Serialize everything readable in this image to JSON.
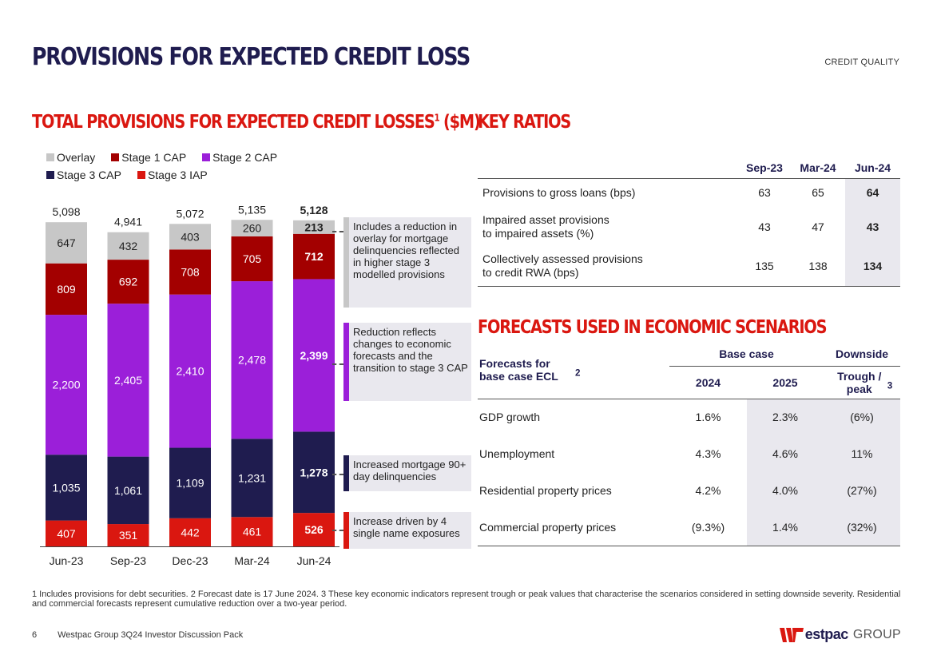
{
  "page": {
    "title": "PROVISIONS FOR EXPECTED CREDIT LOSS",
    "section": "CREDIT QUALITY",
    "page_number": "6",
    "footer_text": "Westpac Group 3Q24 Investor Discussion Pack",
    "logo_text": "estpac",
    "logo_group": "GROUP"
  },
  "chart_title": {
    "text": "TOTAL PROVISIONS FOR EXPECTED CREDIT LOSSES",
    "sup": "1",
    "suffix": " ($M)"
  },
  "legend": [
    {
      "label": "Overlay",
      "color": "#c7c7c7"
    },
    {
      "label": "Stage 1 CAP",
      "color": "#a30000"
    },
    {
      "label": "Stage 2 CAP",
      "color": "#9b1fd9"
    },
    {
      "label": "Stage 3 CAP",
      "color": "#1f1c4f"
    },
    {
      "label": "Stage 3 IAP",
      "color": "#da1710"
    }
  ],
  "chart_data": {
    "type": "bar",
    "stacked": true,
    "title": "Total provisions for expected credit losses ($M)",
    "categories": [
      "Jun-23",
      "Sep-23",
      "Dec-23",
      "Mar-24",
      "Jun-24"
    ],
    "series": [
      {
        "name": "Stage 3 IAP",
        "color": "#da1710",
        "values": [
          407,
          351,
          442,
          461,
          526
        ]
      },
      {
        "name": "Stage 3 CAP",
        "color": "#1f1c4f",
        "values": [
          1035,
          1061,
          1109,
          1231,
          1278
        ]
      },
      {
        "name": "Stage 2 CAP",
        "color": "#9b1fd9",
        "values": [
          2200,
          2405,
          2410,
          2478,
          2399
        ]
      },
      {
        "name": "Stage 1 CAP",
        "color": "#a30000",
        "values": [
          809,
          692,
          708,
          705,
          712
        ]
      },
      {
        "name": "Overlay",
        "color": "#c7c7c7",
        "values": [
          647,
          432,
          403,
          260,
          213
        ]
      }
    ],
    "value_labels": [
      [
        "407",
        "351",
        "442",
        "461",
        "526"
      ],
      [
        "1,035",
        "1,061",
        "1,109",
        "1,231",
        "1,278"
      ],
      [
        "2,200",
        "2,405",
        "2,410",
        "2,478",
        "2,399"
      ],
      [
        "809",
        "692",
        "708",
        "705",
        "712"
      ],
      [
        "647",
        "432",
        "403",
        "260",
        "213"
      ]
    ],
    "totals": [
      5098,
      4941,
      5072,
      5135,
      5128
    ],
    "total_labels": [
      "5,098",
      "4,941",
      "5,072",
      "5,135",
      "5,128"
    ],
    "highlight_index": 4,
    "ylim": [
      0,
      5300
    ]
  },
  "annotations": [
    {
      "text": "Includes a reduction in overlay for mortgage delinquencies reflected in higher stage 3 modelled provisions",
      "color": "#c7c7c7"
    },
    {
      "text": "Reduction reflects changes to economic forecasts and the transition to stage 3 CAP",
      "color": "#9b1fd9"
    },
    {
      "text": "Increased mortgage 90+ day delinquencies",
      "color": "#1f1c4f"
    },
    {
      "text": "Increase driven by 4 single name exposures",
      "color": "#da1710"
    }
  ],
  "key_ratios": {
    "title": "KEY RATIOS",
    "columns": [
      "Sep-23",
      "Mar-24",
      "Jun-24"
    ],
    "rows": [
      {
        "label": [
          "Provisions to gross loans (bps)"
        ],
        "values": [
          "63",
          "65",
          "64"
        ]
      },
      {
        "label": [
          "Impaired asset provisions",
          "to impaired assets (%)"
        ],
        "values": [
          "43",
          "47",
          "43"
        ]
      },
      {
        "label": [
          "Collectively assessed provisions",
          "to credit RWA (bps)"
        ],
        "values": [
          "135",
          "138",
          "134"
        ]
      }
    ]
  },
  "forecasts": {
    "title": "FORECASTS USED IN ECONOMIC SCENARIOS",
    "label_header": "Forecasts for base case ECL",
    "label_header_sup": "2",
    "group_base": "Base case",
    "group_down": "Downside",
    "col_2024": "2024",
    "col_2025": "2025",
    "col_trough": "Trough / peak",
    "col_trough_sup": "3",
    "rows": [
      {
        "label": "GDP growth",
        "values": [
          "1.6%",
          "2.3%",
          "(6%)"
        ]
      },
      {
        "label": "Unemployment",
        "values": [
          "4.3%",
          "4.6%",
          "11%"
        ]
      },
      {
        "label": "Residential property prices",
        "values": [
          "4.2%",
          "4.0%",
          "(27%)"
        ]
      },
      {
        "label": "Commercial property prices",
        "values": [
          "(9.3%)",
          "1.4%",
          "(32%)"
        ]
      }
    ]
  },
  "footnote": "1 Includes provisions for debt securities. 2 Forecast date is 17 June 2024. 3 These key economic indicators represent trough or peak values that characterise the scenarios considered in setting downside severity. Residential and commercial forecasts represent cumulative reduction over a two-year period."
}
